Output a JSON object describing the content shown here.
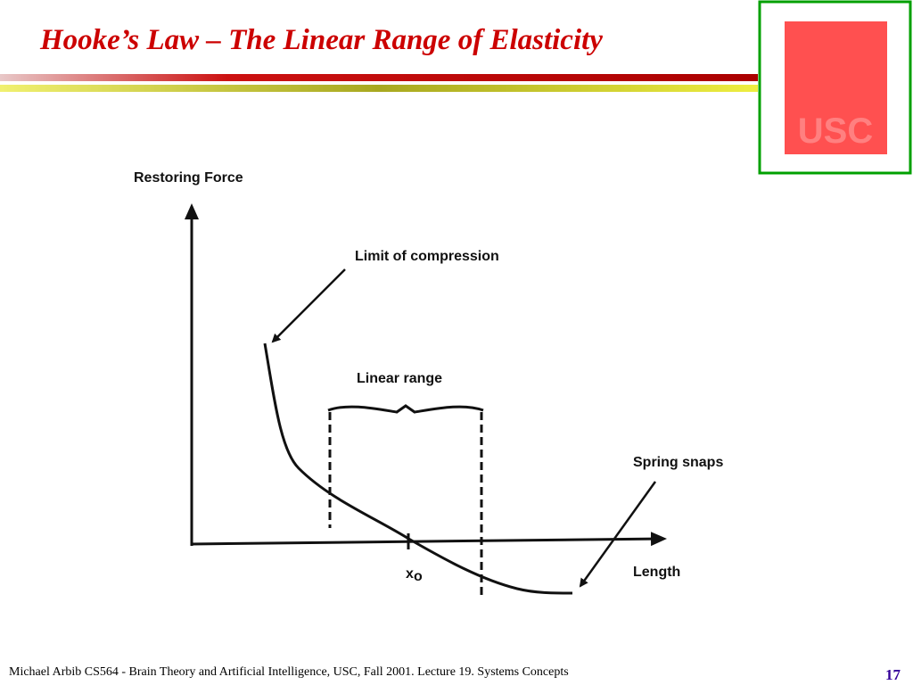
{
  "header": {
    "title": "Hooke’s Law – The Linear Range of Elasticity"
  },
  "logo": {
    "text": "USC"
  },
  "diagram": {
    "y_axis_label": "Restoring Force",
    "x_axis_label": "Length",
    "annotations": [
      "Limit of compression",
      "Linear range",
      "Spring snaps"
    ],
    "x0_label": "x",
    "x0_subscript": "o"
  },
  "footer": {
    "text": "Michael Arbib CS564 - Brain Theory and Artificial Intelligence,  USC, Fall 2001. Lecture 19. Systems Concepts",
    "page": "17"
  }
}
